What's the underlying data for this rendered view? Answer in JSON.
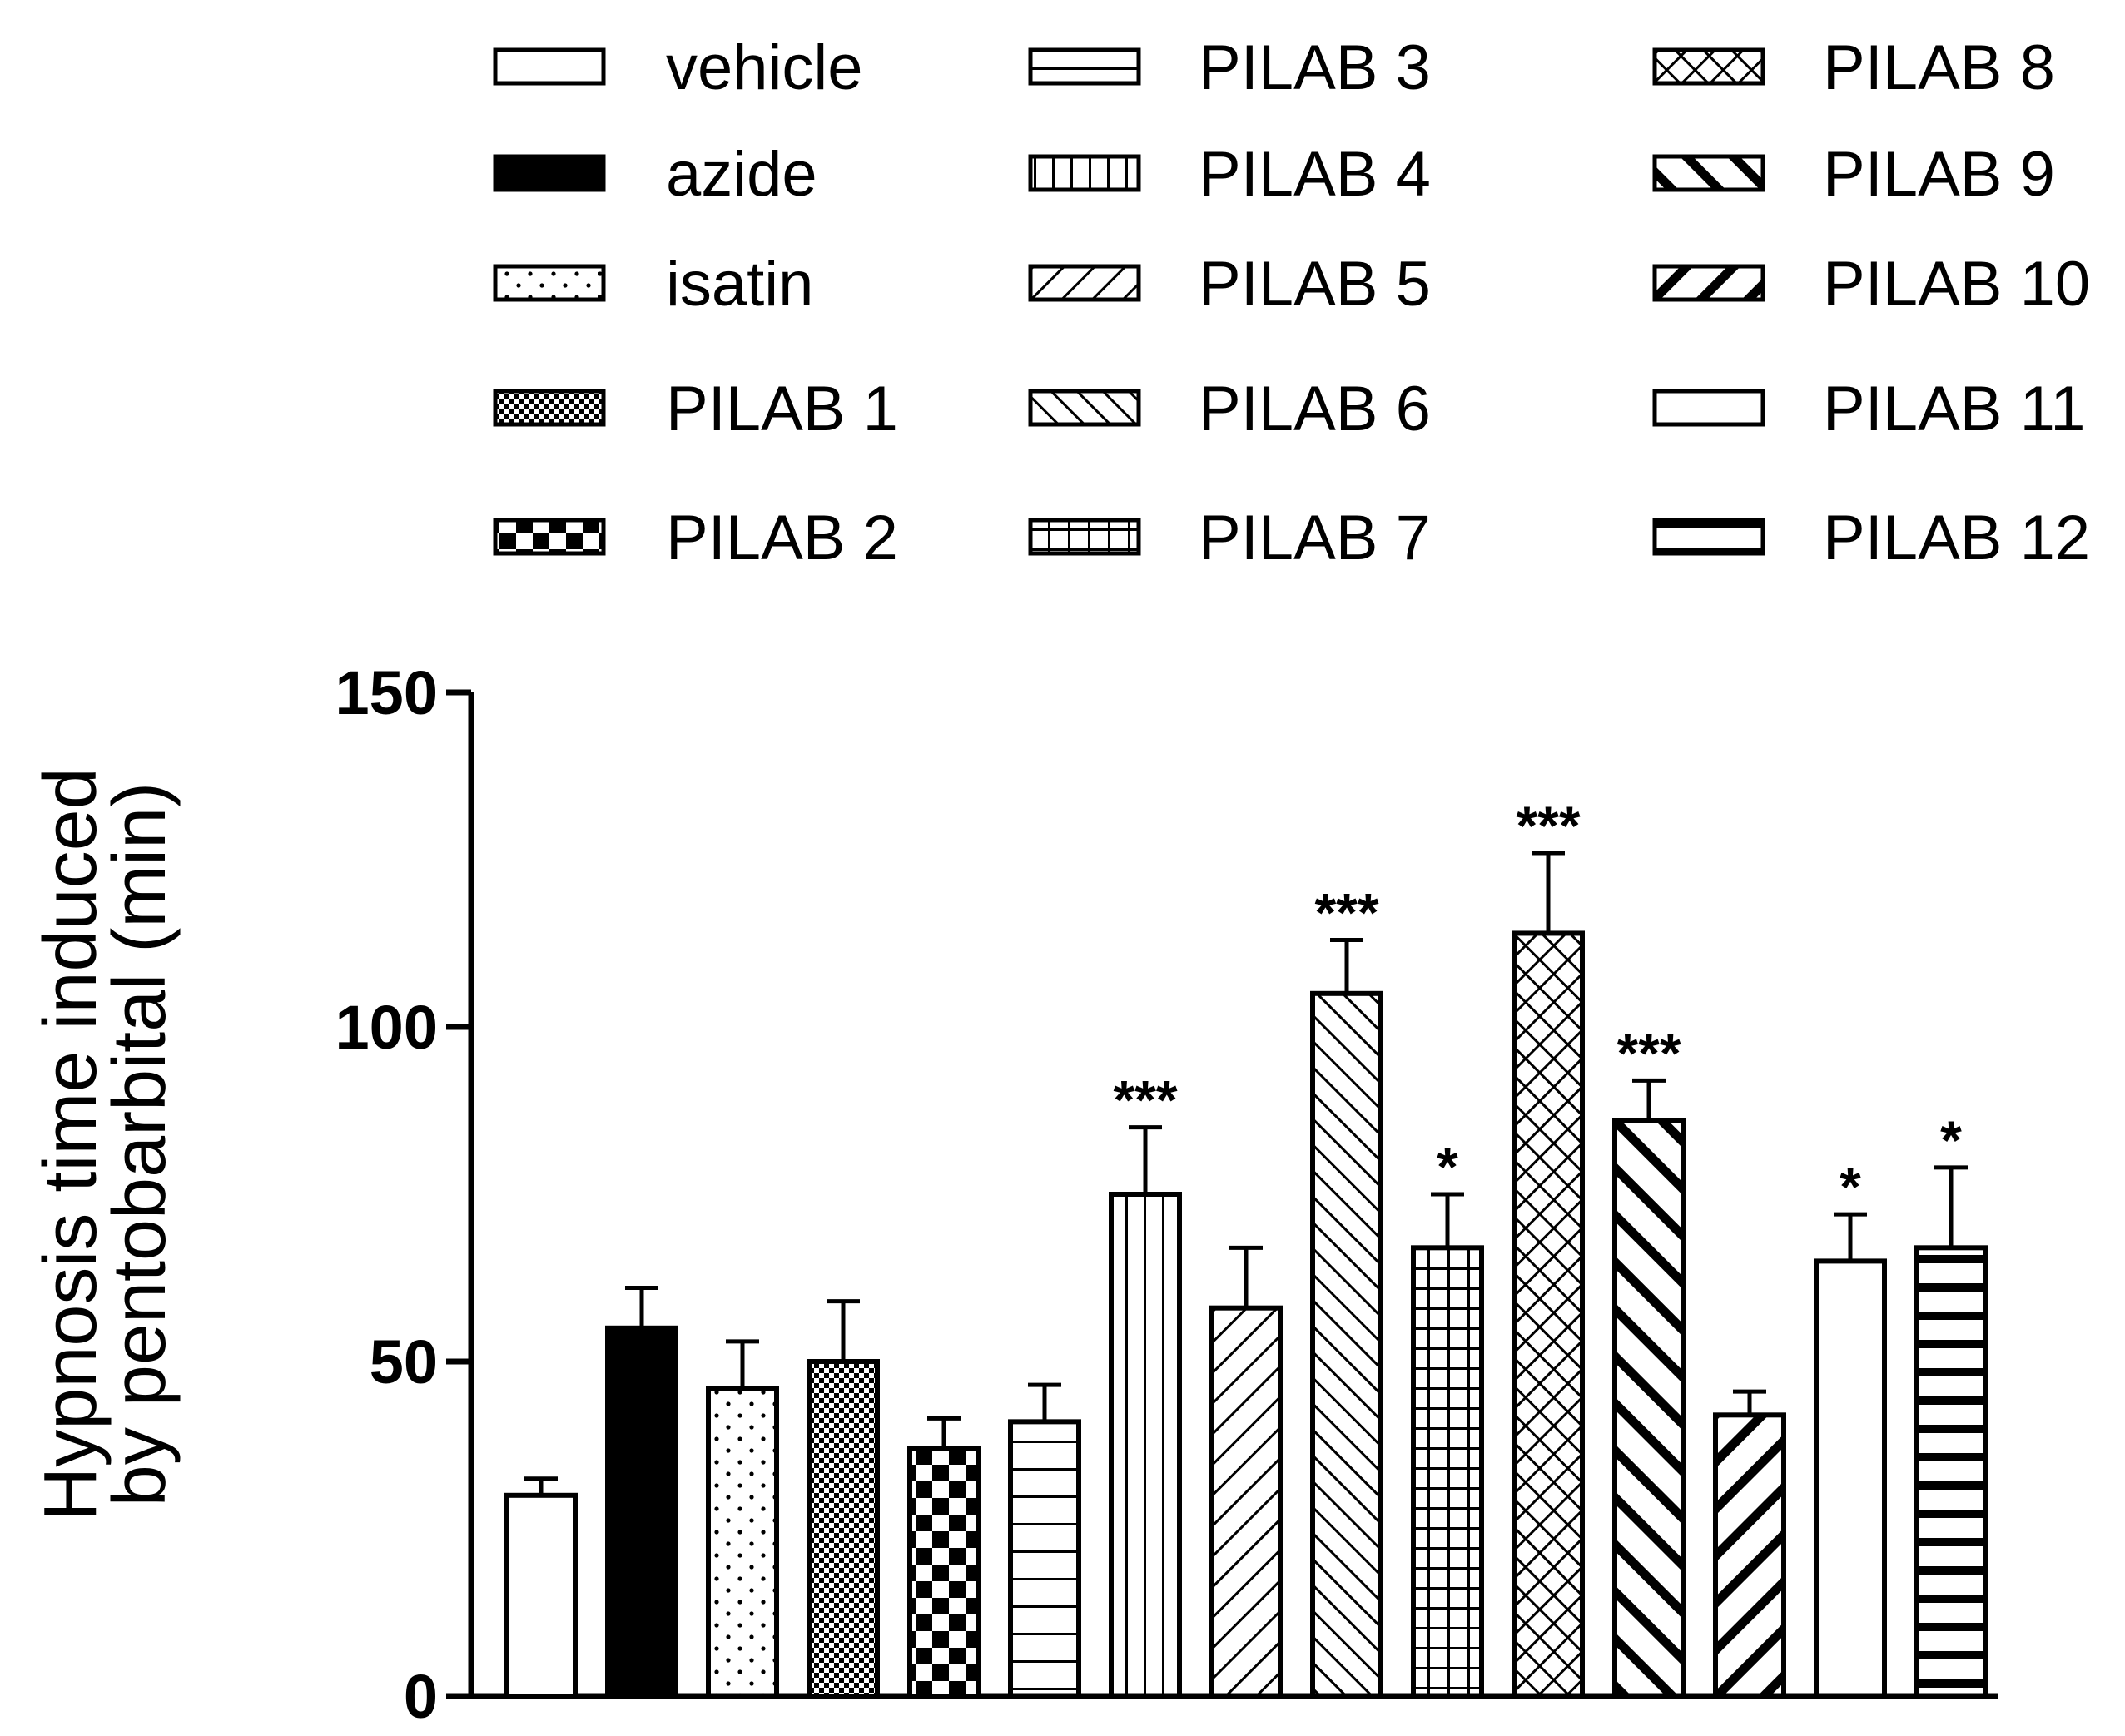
{
  "chart_data": {
    "type": "bar",
    "title": "",
    "xlabel": "",
    "ylabel": [
      "Hypnosis time induced",
      "by pentobarbital (min)"
    ],
    "ylim": [
      0,
      150
    ],
    "yticks": [
      0,
      50,
      100,
      150
    ],
    "categories": [
      "vehicle",
      "azide",
      "isatin",
      "PILAB 1",
      "PILAB 2",
      "PILAB 3",
      "PILAB 4",
      "PILAB 5",
      "PILAB 6",
      "PILAB 7",
      "PILAB 8",
      "PILAB 9",
      "PILAB 10",
      "PILAB 11",
      "PILAB 12"
    ],
    "values": [
      30,
      55,
      46,
      50,
      37,
      41,
      75,
      58,
      105,
      67,
      114,
      86,
      42,
      65,
      67
    ],
    "errors": [
      2.5,
      6,
      7,
      9,
      4.5,
      5.5,
      10,
      9,
      8,
      8,
      12,
      6,
      3.5,
      7,
      12
    ],
    "significance": [
      "",
      "",
      "",
      "",
      "",
      "",
      "***",
      "",
      "***",
      "*",
      "***",
      "***",
      "",
      "*",
      "*"
    ],
    "patterns": [
      "open",
      "solid",
      "dots",
      "fine-check",
      "big-check",
      "hlines",
      "vlines",
      "diag-up",
      "diag-down",
      "grid",
      "crosshatch",
      "thick-diag-down",
      "thick-diag-up",
      "thick-vlines",
      "thick-hlines"
    ],
    "legend": {
      "placement": "top",
      "columns": [
        [
          "vehicle",
          "azide",
          "isatin",
          "PILAB 1",
          "PILAB 2"
        ],
        [
          "PILAB 3",
          "PILAB 4",
          "PILAB 5",
          "PILAB 6",
          "PILAB 7"
        ],
        [
          "PILAB 8",
          "PILAB 9",
          "PILAB 10",
          "PILAB 11",
          "PILAB 12"
        ]
      ]
    }
  }
}
